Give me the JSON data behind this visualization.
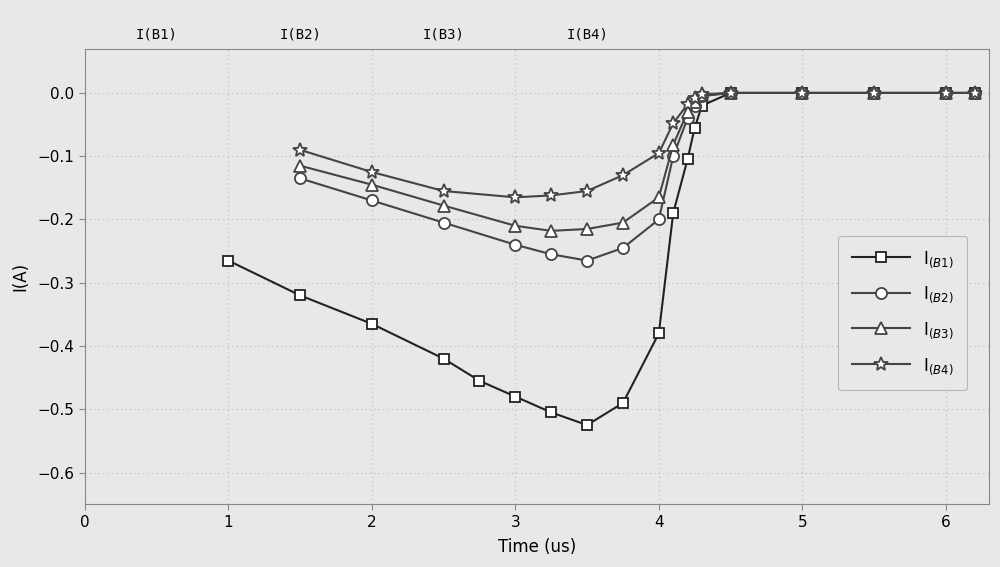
{
  "xlabel": "Time (us)",
  "ylabel": "I(A)",
  "xlim": [
    0,
    6.3
  ],
  "ylim": [
    -0.65,
    0.07
  ],
  "xticks": [
    0,
    1,
    2,
    3,
    4,
    5,
    6
  ],
  "yticks": [
    0,
    -0.1,
    -0.2,
    -0.3,
    -0.4,
    -0.5,
    -0.6
  ],
  "top_labels": [
    "I(B1)",
    "I(B2)",
    "I(B3)",
    "I(B4)"
  ],
  "background_color": "#e8e8e8",
  "grid_color": "#bbbbbb",
  "series": [
    {
      "label": "I$_{(B1)}$",
      "marker": "s",
      "color": "#222222",
      "linewidth": 1.5,
      "markersize": 7,
      "x": [
        1.0,
        1.5,
        2.0,
        2.5,
        2.75,
        3.0,
        3.25,
        3.5,
        3.75,
        4.0,
        4.1,
        4.2,
        4.25,
        4.3,
        4.5,
        5.0,
        5.5,
        6.0,
        6.2
      ],
      "y": [
        -0.265,
        -0.32,
        -0.365,
        -0.42,
        -0.455,
        -0.48,
        -0.505,
        -0.525,
        -0.49,
        -0.38,
        -0.19,
        -0.105,
        -0.055,
        -0.02,
        0.0,
        0.0,
        0.0,
        0.0,
        0.0
      ]
    },
    {
      "label": "I$_{(B2)}$",
      "marker": "o",
      "color": "#444444",
      "linewidth": 1.5,
      "markersize": 8,
      "x": [
        1.5,
        2.0,
        2.5,
        3.0,
        3.25,
        3.5,
        3.75,
        4.0,
        4.1,
        4.2,
        4.25,
        4.3,
        4.5,
        5.0,
        5.5,
        6.0,
        6.2
      ],
      "y": [
        -0.135,
        -0.17,
        -0.205,
        -0.24,
        -0.255,
        -0.265,
        -0.245,
        -0.2,
        -0.1,
        -0.04,
        -0.02,
        -0.005,
        0.0,
        0.0,
        0.0,
        0.0,
        0.0
      ]
    },
    {
      "label": "I$_{(B3)}$",
      "marker": "^",
      "color": "#444444",
      "linewidth": 1.5,
      "markersize": 8,
      "x": [
        1.5,
        2.0,
        2.5,
        3.0,
        3.25,
        3.5,
        3.75,
        4.0,
        4.1,
        4.2,
        4.25,
        4.3,
        4.5,
        5.0,
        5.5,
        6.0,
        6.2
      ],
      "y": [
        -0.115,
        -0.145,
        -0.178,
        -0.21,
        -0.218,
        -0.215,
        -0.205,
        -0.165,
        -0.082,
        -0.03,
        -0.015,
        -0.004,
        0.0,
        0.0,
        0.0,
        0.0,
        0.0
      ]
    },
    {
      "label": "I$_{(B4)}$",
      "marker": "*",
      "color": "#444444",
      "linewidth": 1.5,
      "markersize": 10,
      "x": [
        1.5,
        2.0,
        2.5,
        3.0,
        3.25,
        3.5,
        3.75,
        4.0,
        4.1,
        4.2,
        4.25,
        4.3,
        4.5,
        5.0,
        5.5,
        6.0,
        6.2
      ],
      "y": [
        -0.09,
        -0.125,
        -0.155,
        -0.165,
        -0.162,
        -0.155,
        -0.13,
        -0.095,
        -0.048,
        -0.018,
        -0.008,
        -0.002,
        0.0,
        0.0,
        0.0,
        0.0,
        0.0
      ]
    }
  ],
  "legend_labels_raw": [
    "I",
    "I",
    "I",
    "I"
  ],
  "legend_subscripts": [
    "(B1)",
    "(B2)",
    "(B3)",
    "(B4)"
  ]
}
